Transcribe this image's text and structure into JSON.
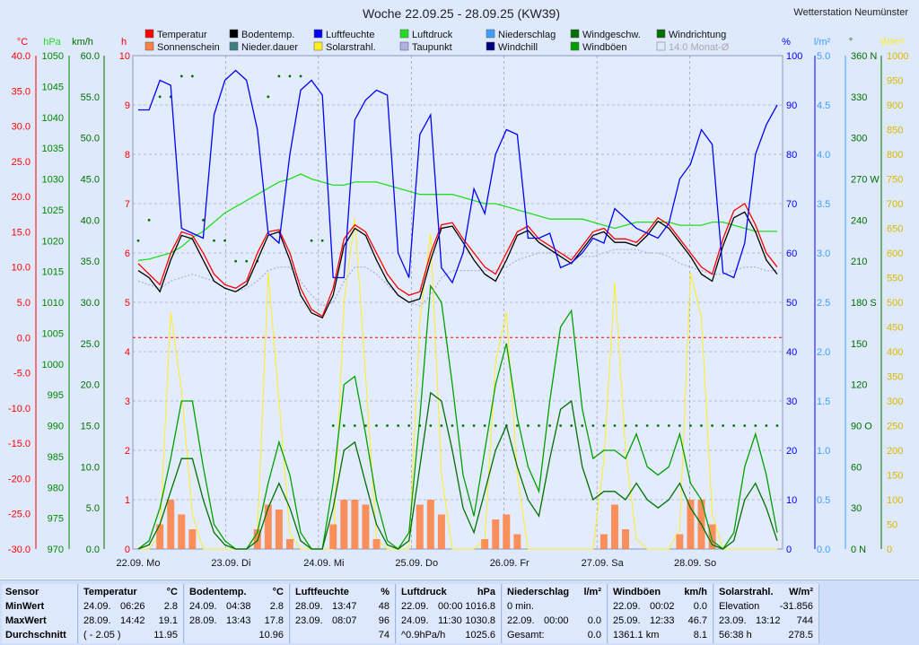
{
  "title": "Woche 22.09.25 - 28.09.25 (KW39)",
  "station": "Wetterstation Neumünster",
  "colors": {
    "temperature": "#ff0000",
    "sunshine": "#ff7f3f",
    "soil_temp": "#000000",
    "precip_duration": "#3f7f7f",
    "humidity": "#0000ff",
    "solar": "#ffee22",
    "pressure": "#22dd22",
    "dewpoint": "#b0b0e0",
    "precipitation": "#3f9fff",
    "windchill": "#00007f",
    "wind_speed": "#006f00",
    "gusts": "#009f00",
    "wind_dir": "#006f00",
    "avg": "#aaaaaa"
  },
  "legend": [
    {
      "label": "Temperatur",
      "key": "temperature"
    },
    {
      "label": "Bodentemp.",
      "key": "soil_temp"
    },
    {
      "label": "Luftfeuchte",
      "key": "humidity"
    },
    {
      "label": "Luftdruck",
      "key": "pressure"
    },
    {
      "label": "Niederschlag",
      "key": "precipitation"
    },
    {
      "label": "Windgeschw.",
      "key": "wind_speed"
    },
    {
      "label": "Windrichtung",
      "key": "wind_dir"
    },
    {
      "label": "Sonnenschein",
      "key": "sunshine"
    },
    {
      "label": "Nieder.dauer",
      "key": "precip_duration"
    },
    {
      "label": "Solarstrahl.",
      "key": "solar"
    },
    {
      "label": "Taupunkt",
      "key": "dewpoint"
    },
    {
      "label": "Windchill",
      "key": "windchill"
    },
    {
      "label": "Windböen",
      "key": "gusts"
    },
    {
      "label": "14.0 Monat-Ø",
      "key": "avg"
    }
  ],
  "axis_units": {
    "temp": "°C",
    "pressure": "hPa",
    "wind": "km/h",
    "hours": "h",
    "humidity": "%",
    "precip": "l/m²",
    "direction": "°",
    "solar": "W/m²"
  },
  "chart_data": {
    "type": "line",
    "x_labels": [
      "22.09. Mo",
      "23.09. Di",
      "24.09. Mi",
      "25.09. Do",
      "26.09. Fr",
      "27.09. Sa",
      "28.09. So"
    ],
    "axes": {
      "temp": {
        "min": -30,
        "max": 40,
        "ticks": [
          "40.0",
          "35.0",
          "30.0",
          "25.0",
          "20.0",
          "15.0",
          "10.0",
          "5.0",
          "0.0",
          "-5.0",
          "-10.0",
          "-15.0",
          "-20.0",
          "-25.0",
          "-30.0"
        ]
      },
      "pressure": {
        "min": 970,
        "max": 1050,
        "ticks": [
          "1050",
          "1045",
          "1040",
          "1035",
          "1030",
          "1025",
          "1020",
          "1015",
          "1010",
          "1005",
          "1000",
          "995",
          "990",
          "985",
          "980",
          "975",
          "970"
        ]
      },
      "wind": {
        "min": 0,
        "max": 60,
        "ticks": [
          "60.0",
          "55.0",
          "50.0",
          "45.0",
          "40.0",
          "35.0",
          "30.0",
          "25.0",
          "20.0",
          "15.0",
          "10.0",
          "5.0",
          "0.0"
        ]
      },
      "hours": {
        "min": 0,
        "max": 10,
        "ticks": [
          "10",
          "9",
          "8",
          "7",
          "6",
          "5",
          "4",
          "3",
          "2",
          "1",
          "0"
        ]
      },
      "humidity": {
        "min": 0,
        "max": 100,
        "ticks": [
          "100",
          "90",
          "80",
          "70",
          "60",
          "50",
          "40",
          "30",
          "20",
          "10",
          "0"
        ]
      },
      "precip": {
        "min": 0,
        "max": 5,
        "ticks": [
          "5.0",
          "4.5",
          "4.0",
          "3.5",
          "3.0",
          "2.5",
          "2.0",
          "1.5",
          "1.0",
          "0.5",
          "0.0"
        ]
      },
      "direction": {
        "min": 0,
        "max": 360,
        "ticks": [
          "360 N",
          "330",
          "300",
          "270 W",
          "240",
          "210",
          "180 S",
          "150",
          "120",
          "90 O",
          "60",
          "30",
          "0 N"
        ]
      },
      "solar": {
        "min": 0,
        "max": 1000,
        "ticks": [
          "1000",
          "950",
          "900",
          "850",
          "800",
          "750",
          "700",
          "650",
          "600",
          "550",
          "500",
          "450",
          "400",
          "350",
          "300",
          "250",
          "200",
          "150",
          "100",
          "50",
          "0"
        ]
      }
    },
    "series": [
      {
        "name": "Temperatur",
        "key": "temperature",
        "axis": "temp",
        "values": [
          10.5,
          9,
          7.5,
          12,
          15,
          14.5,
          12,
          9,
          7.5,
          7,
          8,
          12,
          15,
          15.3,
          12,
          7,
          4,
          3,
          7,
          14,
          16,
          15,
          12,
          9,
          7,
          6,
          6.5,
          12,
          16,
          16.3,
          14,
          12,
          10,
          9,
          12,
          15,
          15.8,
          14,
          13,
          12,
          11,
          13,
          15,
          15.5,
          14,
          14,
          13.5,
          15,
          17,
          16,
          14,
          12,
          10,
          9,
          14,
          18,
          19,
          16,
          12,
          10
        ]
      },
      {
        "name": "Bodentemp.",
        "key": "soil_temp",
        "axis": "temp",
        "values": [
          9.5,
          8.5,
          6.5,
          11,
          14.5,
          14,
          11,
          8,
          7,
          6.5,
          7.5,
          11,
          14.5,
          15,
          11,
          6,
          3.5,
          2.8,
          6,
          13,
          15.5,
          14.5,
          11,
          8,
          6,
          5,
          5.5,
          11,
          15.5,
          15.8,
          13.5,
          11,
          9,
          8,
          11,
          14.5,
          15.2,
          13.5,
          12.5,
          11.5,
          10.5,
          12.5,
          14.5,
          15,
          13.5,
          13.5,
          13,
          14.5,
          16.5,
          15.5,
          13.5,
          11.5,
          9,
          8,
          13,
          17,
          17.8,
          15,
          11,
          9
        ]
      },
      {
        "name": "Taupunkt",
        "key": "dewpoint",
        "axis": "temp",
        "values": [
          8,
          7.5,
          7,
          8,
          8.5,
          9,
          8.5,
          8,
          7,
          6.5,
          7,
          8,
          9.5,
          10,
          10,
          8,
          6,
          4.5,
          5,
          8,
          10,
          10,
          9,
          7.5,
          6,
          5,
          4.5,
          6,
          8.5,
          9.5,
          9.5,
          9.5,
          9.5,
          9.5,
          10,
          11,
          11.5,
          12,
          12,
          12,
          11.5,
          11.5,
          11.5,
          12,
          12.5,
          12.5,
          12.5,
          12,
          12,
          11.5,
          10.5,
          10,
          9.5,
          9,
          9,
          9.5,
          10,
          10,
          9.5,
          9.5
        ]
      },
      {
        "name": "Luftfeuchte",
        "key": "humidity",
        "axis": "humidity",
        "values": [
          89,
          89,
          95,
          94,
          65,
          64,
          63,
          88,
          95,
          97,
          95,
          85,
          64,
          62,
          80,
          93,
          95,
          92,
          55,
          55,
          87,
          91,
          93,
          92,
          60,
          55,
          84,
          88,
          57,
          54,
          60,
          73,
          68,
          80,
          85,
          84,
          63,
          63,
          64,
          57,
          58,
          60,
          63,
          62,
          69,
          67,
          65,
          64,
          63,
          66,
          75,
          78,
          85,
          82,
          56,
          55,
          62,
          80,
          86,
          90
        ]
      },
      {
        "name": "Luftdruck",
        "key": "pressure",
        "axis": "pressure",
        "values": [
          1016.8,
          1017,
          1017.5,
          1018,
          1019,
          1020.5,
          1021.5,
          1023,
          1024.5,
          1025.5,
          1026.5,
          1027.5,
          1028.5,
          1029.5,
          1030,
          1030.8,
          1030,
          1029.5,
          1029,
          1029,
          1029.5,
          1029.5,
          1029.5,
          1029,
          1028.5,
          1028,
          1027.5,
          1027.5,
          1027.5,
          1027.5,
          1027,
          1026.5,
          1026,
          1026,
          1025.5,
          1025,
          1024.5,
          1024,
          1023.5,
          1023.5,
          1023.5,
          1023.5,
          1023,
          1022.5,
          1022,
          1022.5,
          1023,
          1023,
          1023,
          1023,
          1022.5,
          1022.5,
          1022.5,
          1023,
          1023,
          1022.5,
          1022,
          1021.5,
          1021.5,
          1021.5
        ]
      },
      {
        "name": "Windböen",
        "key": "gusts",
        "axis": "wind",
        "values": [
          0,
          1,
          5,
          11,
          18,
          18,
          10,
          3,
          1,
          0,
          0,
          2,
          8,
          13,
          9,
          2,
          0,
          0,
          8,
          20,
          21,
          14,
          6,
          1,
          0,
          2,
          16,
          32,
          30,
          20,
          9,
          4,
          12,
          20,
          25,
          16,
          10,
          7,
          18,
          27,
          29,
          17,
          11,
          12,
          12,
          11,
          14,
          10,
          9,
          10,
          14,
          8,
          6,
          1,
          0,
          2,
          10,
          14,
          9,
          2
        ]
      },
      {
        "name": "Windgeschw.",
        "key": "wind_speed",
        "axis": "wind",
        "values": [
          0,
          0.5,
          3,
          7,
          11,
          11,
          6,
          2,
          0.5,
          0,
          0,
          1,
          5,
          8,
          5,
          1,
          0,
          0,
          5,
          12,
          13,
          8,
          3,
          0.5,
          0,
          1,
          10,
          19,
          18,
          12,
          5,
          2,
          7,
          12,
          15,
          10,
          6,
          4,
          11,
          17,
          18,
          10,
          6,
          7,
          7,
          6,
          8,
          6,
          5,
          6,
          8,
          5,
          3,
          0.5,
          0,
          1,
          6,
          8,
          5,
          1
        ]
      },
      {
        "name": "Solarstrahl.",
        "key": "solar",
        "axis": "solar",
        "values": [
          0,
          0,
          30,
          480,
          320,
          70,
          0,
          0,
          0,
          0,
          0,
          30,
          560,
          300,
          30,
          0,
          0,
          0,
          0,
          500,
          670,
          350,
          20,
          0,
          0,
          0,
          460,
          640,
          150,
          0,
          0,
          0,
          20,
          380,
          480,
          150,
          0,
          0,
          0,
          0,
          0,
          0,
          0,
          180,
          540,
          200,
          20,
          0,
          0,
          0,
          40,
          560,
          470,
          70,
          0,
          0,
          0,
          0,
          0,
          0
        ]
      },
      {
        "name": "Sonnenschein",
        "key": "sunshine",
        "axis": "hours",
        "values": [
          0,
          0,
          0.5,
          1,
          0.7,
          0.4,
          0,
          0,
          0,
          0,
          0,
          0.4,
          0.9,
          0.8,
          0.2,
          0,
          0,
          0,
          0.5,
          1,
          1,
          0.9,
          0.2,
          0,
          0,
          0,
          0.9,
          1,
          0.7,
          0,
          0,
          0,
          0.2,
          0.6,
          0.7,
          0.3,
          0,
          0,
          0,
          0,
          0,
          0,
          0,
          0.3,
          0.9,
          0.4,
          0,
          0,
          0,
          0,
          0.3,
          1,
          1,
          0.5,
          0,
          0,
          0,
          0,
          0,
          0
        ]
      },
      {
        "name": "Windrichtung",
        "key": "wind_dir",
        "axis": "direction",
        "values": [
          225,
          240,
          330,
          330,
          345,
          345,
          240,
          225,
          225,
          210,
          210,
          210,
          330,
          345,
          345,
          345,
          225,
          225,
          90,
          90,
          90,
          90,
          90,
          90,
          90,
          90,
          90,
          90,
          90,
          90,
          90,
          90,
          90,
          90,
          90,
          90,
          90,
          90,
          90,
          90,
          90,
          90,
          90,
          90,
          90,
          90,
          90,
          90,
          90,
          90,
          90,
          90,
          90,
          90,
          90,
          90,
          90,
          90,
          90,
          90
        ]
      }
    ],
    "reference_lines": [
      {
        "axis": "temp",
        "value": 0,
        "color": "#ff0000"
      }
    ]
  },
  "stats": {
    "panels": [
      {
        "header": [
          "Sensor"
        ],
        "rows": [
          [
            "MinWert"
          ],
          [
            "MaxWert"
          ],
          [
            "Durchschnitt"
          ]
        ]
      },
      {
        "header": [
          "Temperatur",
          "°C"
        ],
        "rows": [
          [
            "24.09.",
            "06:26",
            "2.8"
          ],
          [
            "28.09.",
            "14:42",
            "19.1"
          ],
          [
            "( - 2.05 )",
            "",
            "11.95"
          ]
        ]
      },
      {
        "header": [
          "Bodentemp.",
          "°C"
        ],
        "rows": [
          [
            "24.09.",
            "04:38",
            "2.8"
          ],
          [
            "28.09.",
            "13:43",
            "17.8"
          ],
          [
            "",
            "",
            "10.96"
          ]
        ]
      },
      {
        "header": [
          "Luftfeuchte",
          "%"
        ],
        "rows": [
          [
            "28.09.",
            "13:47",
            "48"
          ],
          [
            "23.09.",
            "08:07",
            "96"
          ],
          [
            "",
            "",
            "74"
          ]
        ]
      },
      {
        "header": [
          "Luftdruck",
          "hPa"
        ],
        "rows": [
          [
            "22.09.",
            "00:00",
            "1016.8"
          ],
          [
            "24.09.",
            "11:30",
            "1030.8"
          ],
          [
            "^0.9hPa/h",
            "",
            "1025.6"
          ]
        ]
      },
      {
        "header": [
          "Niederschlag",
          "l/m²"
        ],
        "rows": [
          [
            "0 min.",
            "",
            ""
          ],
          [
            "22.09.",
            "00:00",
            "0.0"
          ],
          [
            "Gesamt:",
            "",
            "0.0"
          ]
        ]
      },
      {
        "header": [
          "Windböen",
          "km/h"
        ],
        "rows": [
          [
            "22.09.",
            "00:02",
            "0.0"
          ],
          [
            "25.09.",
            "12:33",
            "46.7"
          ],
          [
            "1361.1 km",
            "",
            "8.1"
          ]
        ]
      },
      {
        "header": [
          "Solarstrahl.",
          "W/m²"
        ],
        "rows": [
          [
            "Elevation",
            "",
            "-31.856"
          ],
          [
            "23.09.",
            "13:12",
            "744"
          ],
          [
            "56:38 h",
            "",
            "278.5"
          ]
        ]
      }
    ]
  }
}
